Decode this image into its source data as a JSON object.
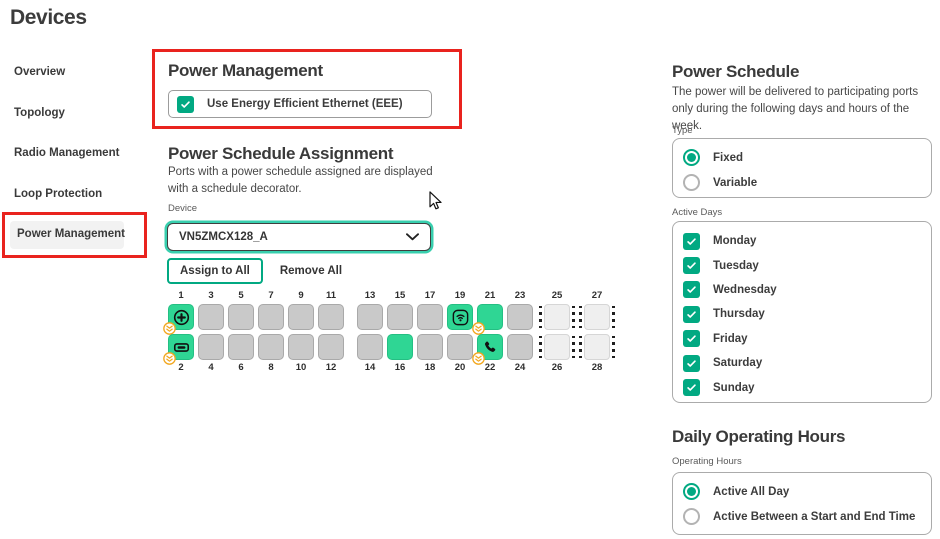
{
  "page": {
    "title": "Devices"
  },
  "sidebar": {
    "items": [
      {
        "label": "Overview",
        "selected": false
      },
      {
        "label": "Topology",
        "selected": false
      },
      {
        "label": "Radio Management",
        "selected": false
      },
      {
        "label": "Loop Protection",
        "selected": false
      },
      {
        "label": "Power Management",
        "selected": true
      }
    ]
  },
  "power_management": {
    "title": "Power Management",
    "eee_checkbox": {
      "label": "Use Energy Efficient Ethernet (EEE)",
      "checked": true
    }
  },
  "power_schedule_assignment": {
    "title": "Power Schedule Assignment",
    "description": "Ports with a power schedule assigned are displayed with a schedule decorator.",
    "device_label": "Device",
    "device_value": "VN5ZMCX128_A",
    "assign_all_label": "Assign to All",
    "remove_all_label": "Remove All",
    "port_groups": [
      {
        "sfp": false,
        "columns": [
          {
            "top": {
              "n": "1",
              "green": true,
              "icon": "iot-device-icon",
              "badge": true
            },
            "bottom": {
              "n": "2",
              "green": true,
              "icon": "switch-icon",
              "badge": true
            }
          },
          {
            "top": {
              "n": "3"
            },
            "bottom": {
              "n": "4"
            }
          },
          {
            "top": {
              "n": "5"
            },
            "bottom": {
              "n": "6"
            }
          },
          {
            "top": {
              "n": "7"
            },
            "bottom": {
              "n": "8"
            }
          },
          {
            "top": {
              "n": "9"
            },
            "bottom": {
              "n": "10"
            }
          },
          {
            "top": {
              "n": "11"
            },
            "bottom": {
              "n": "12"
            }
          }
        ]
      },
      {
        "sfp": false,
        "columns": [
          {
            "top": {
              "n": "13"
            },
            "bottom": {
              "n": "14"
            }
          },
          {
            "top": {
              "n": "15"
            },
            "bottom": {
              "n": "16",
              "green": true
            }
          },
          {
            "top": {
              "n": "17"
            },
            "bottom": {
              "n": "18"
            }
          },
          {
            "top": {
              "n": "19",
              "green": true,
              "icon": "wifi-ap-icon"
            },
            "bottom": {
              "n": "20"
            }
          },
          {
            "top": {
              "n": "21",
              "green": true,
              "badge": true
            },
            "bottom": {
              "n": "22",
              "green": true,
              "icon": "phone-icon",
              "badge": true
            }
          },
          {
            "top": {
              "n": "23"
            },
            "bottom": {
              "n": "24"
            }
          }
        ]
      },
      {
        "sfp": true,
        "columns": [
          {
            "top": {
              "n": "25"
            },
            "bottom": {
              "n": "26"
            }
          },
          {
            "top": {
              "n": "27"
            },
            "bottom": {
              "n": "28"
            }
          }
        ]
      }
    ]
  },
  "power_schedule": {
    "title": "Power Schedule",
    "description": "The power will be delivered to participating ports only during the following days and hours of the week.",
    "type_label": "Type",
    "type_options": [
      {
        "label": "Fixed",
        "selected": true
      },
      {
        "label": "Variable",
        "selected": false
      }
    ],
    "active_days_label": "Active Days",
    "days": [
      {
        "label": "Monday",
        "checked": true
      },
      {
        "label": "Tuesday",
        "checked": true
      },
      {
        "label": "Wednesday",
        "checked": true
      },
      {
        "label": "Thursday",
        "checked": true
      },
      {
        "label": "Friday",
        "checked": true
      },
      {
        "label": "Saturday",
        "checked": true
      },
      {
        "label": "Sunday",
        "checked": true
      }
    ]
  },
  "daily_operating_hours": {
    "title": "Daily Operating Hours",
    "label": "Operating Hours",
    "options": [
      {
        "label": "Active All Day",
        "selected": true
      },
      {
        "label": "Active Between a Start and End Time",
        "selected": false
      }
    ]
  },
  "colors": {
    "accent_green": "#01a982",
    "port_active_green": "#2fd694",
    "annotation_red": "#e9231e",
    "decorator_orange": "#f2a71e"
  }
}
